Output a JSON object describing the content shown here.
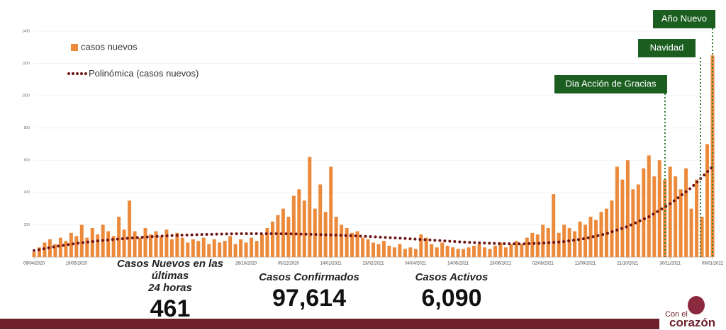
{
  "chart_data": {
    "type": "bar",
    "legend": {
      "bars": "casos nuevos",
      "trend": "Polinómica (casos nuevos)"
    },
    "xlim": [
      0,
      640
    ],
    "xticks": [
      {
        "value": 0,
        "label": "09/04/2020"
      },
      {
        "value": 40,
        "label": "19/05/2020"
      },
      {
        "value": 200,
        "label": "26/10/2020"
      },
      {
        "value": 240,
        "label": "05/12/2020"
      },
      {
        "value": 280,
        "label": "14/01/2021"
      },
      {
        "value": 320,
        "label": "23/02/2021"
      },
      {
        "value": 360,
        "label": "04/04/2021"
      },
      {
        "value": 400,
        "label": "14/05/2021"
      },
      {
        "value": 440,
        "label": "23/06/2021"
      },
      {
        "value": 480,
        "label": "02/08/2021"
      },
      {
        "value": 520,
        "label": "11/09/2021"
      },
      {
        "value": 560,
        "label": "21/10/2021"
      },
      {
        "value": 600,
        "label": "30/11/2021"
      },
      {
        "value": 640,
        "label": "09/01/2022"
      }
    ],
    "ylim": [
      0,
      1400
    ],
    "yticks": [
      200,
      400,
      600,
      800,
      1000,
      1200,
      1400
    ],
    "grid": true,
    "bar_color": "#ec8a3c",
    "trend_color": "#6e1414",
    "x": [
      0,
      5,
      10,
      15,
      20,
      25,
      30,
      35,
      40,
      45,
      50,
      55,
      60,
      65,
      70,
      75,
      80,
      85,
      90,
      95,
      100,
      105,
      110,
      115,
      120,
      125,
      130,
      135,
      140,
      145,
      150,
      155,
      160,
      165,
      170,
      175,
      180,
      185,
      190,
      195,
      200,
      205,
      210,
      215,
      220,
      225,
      230,
      235,
      240,
      245,
      250,
      255,
      260,
      265,
      270,
      275,
      280,
      285,
      290,
      295,
      300,
      305,
      310,
      315,
      320,
      325,
      330,
      335,
      340,
      345,
      350,
      355,
      360,
      365,
      370,
      375,
      380,
      385,
      390,
      395,
      400,
      405,
      410,
      415,
      420,
      425,
      430,
      435,
      440,
      445,
      450,
      455,
      460,
      465,
      470,
      475,
      480,
      485,
      490,
      495,
      500,
      505,
      510,
      515,
      520,
      525,
      530,
      535,
      540,
      545,
      550,
      555,
      560,
      565,
      570,
      575,
      580,
      585,
      590,
      595,
      600,
      605,
      610,
      615,
      620,
      625,
      630,
      635,
      640
    ],
    "values": [
      30,
      60,
      90,
      110,
      80,
      120,
      100,
      150,
      130,
      200,
      120,
      180,
      140,
      200,
      160,
      130,
      250,
      170,
      350,
      160,
      120,
      180,
      140,
      160,
      130,
      170,
      110,
      150,
      120,
      90,
      110,
      100,
      120,
      80,
      110,
      90,
      100,
      130,
      80,
      110,
      90,
      120,
      100,
      140,
      180,
      220,
      260,
      300,
      250,
      380,
      420,
      350,
      620,
      300,
      450,
      280,
      560,
      250,
      200,
      180,
      150,
      160,
      120,
      110,
      90,
      80,
      100,
      70,
      60,
      80,
      50,
      60,
      50,
      140,
      120,
      80,
      60,
      90,
      70,
      60,
      50,
      50,
      60,
      70,
      80,
      60,
      50,
      70,
      90,
      60,
      80,
      100,
      80,
      120,
      150,
      140,
      200,
      180,
      390,
      150,
      200,
      180,
      160,
      220,
      200,
      250,
      230,
      280,
      300,
      350,
      560,
      480,
      600,
      420,
      450,
      550,
      630,
      500,
      600,
      480,
      560,
      500,
      420,
      550,
      300,
      480,
      250,
      700,
      1250
    ],
    "trend_x": [
      0,
      20,
      40,
      60,
      80,
      100,
      120,
      140,
      160,
      180,
      200,
      220,
      240,
      260,
      280,
      300,
      320,
      340,
      360,
      380,
      400,
      420,
      440,
      460,
      480,
      500,
      520,
      540,
      560,
      580,
      600,
      620,
      640
    ],
    "trend": [
      40,
      65,
      85,
      100,
      112,
      122,
      130,
      136,
      140,
      143,
      145,
      145,
      144,
      141,
      137,
      132,
      126,
      119,
      111,
      103,
      95,
      88,
      83,
      82,
      86,
      96,
      115,
      145,
      190,
      250,
      330,
      430,
      560
    ],
    "annotations": [
      "Dia Acción de Gracias",
      "Navidad",
      "Año Nuevo"
    ]
  },
  "stats": [
    {
      "label": "Casos Nuevos en las últimas",
      "label2": "24 horas",
      "value": "461"
    },
    {
      "label": "Casos Confirmados",
      "value": "97,614"
    },
    {
      "label": "Casos Activos",
      "value": "6,090"
    }
  ],
  "logo": {
    "line1": "Con el",
    "line2": "corazón"
  }
}
